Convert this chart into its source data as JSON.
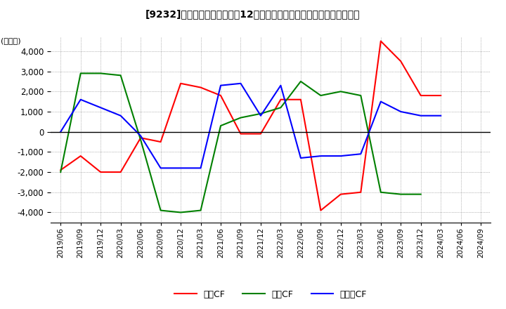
{
  "title": "[9232]　キャッシュフローの12か月移動合計の対前年同期増減額の推移",
  "ylabel": "(百万円)",
  "ylim": [
    -4500,
    4700
  ],
  "yticks": [
    -4000,
    -3000,
    -2000,
    -1000,
    0,
    1000,
    2000,
    3000,
    4000
  ],
  "legend_labels": [
    "営業CF",
    "投資CF",
    "フリーCF"
  ],
  "colors": [
    "#ff0000",
    "#008000",
    "#0000ff"
  ],
  "dates": [
    "2019/06",
    "2019/09",
    "2019/12",
    "2020/03",
    "2020/06",
    "2020/09",
    "2020/12",
    "2021/03",
    "2021/06",
    "2021/09",
    "2021/12",
    "2022/03",
    "2022/06",
    "2022/09",
    "2022/12",
    "2023/03",
    "2023/06",
    "2023/09",
    "2023/12",
    "2024/03",
    "2024/06",
    "2024/09"
  ],
  "operating_cf": [
    -1900,
    -1200,
    -2000,
    -2000,
    -300,
    -500,
    2400,
    2200,
    1800,
    -100,
    -100,
    1600,
    1600,
    -3900,
    -3100,
    -3000,
    4500,
    3500,
    1800,
    1800,
    null,
    null
  ],
  "investing_cf": [
    -2000,
    2900,
    2900,
    2800,
    -400,
    -3900,
    -4000,
    -3900,
    300,
    700,
    900,
    1200,
    2500,
    1800,
    2000,
    1800,
    -3000,
    -3100,
    -3100,
    null,
    null,
    null
  ],
  "free_cf": [
    0,
    1600,
    1200,
    800,
    -200,
    -1800,
    -1800,
    -1800,
    2300,
    2400,
    800,
    2300,
    -1300,
    -1200,
    -1200,
    -1100,
    1500,
    1000,
    800,
    800,
    null,
    null
  ]
}
